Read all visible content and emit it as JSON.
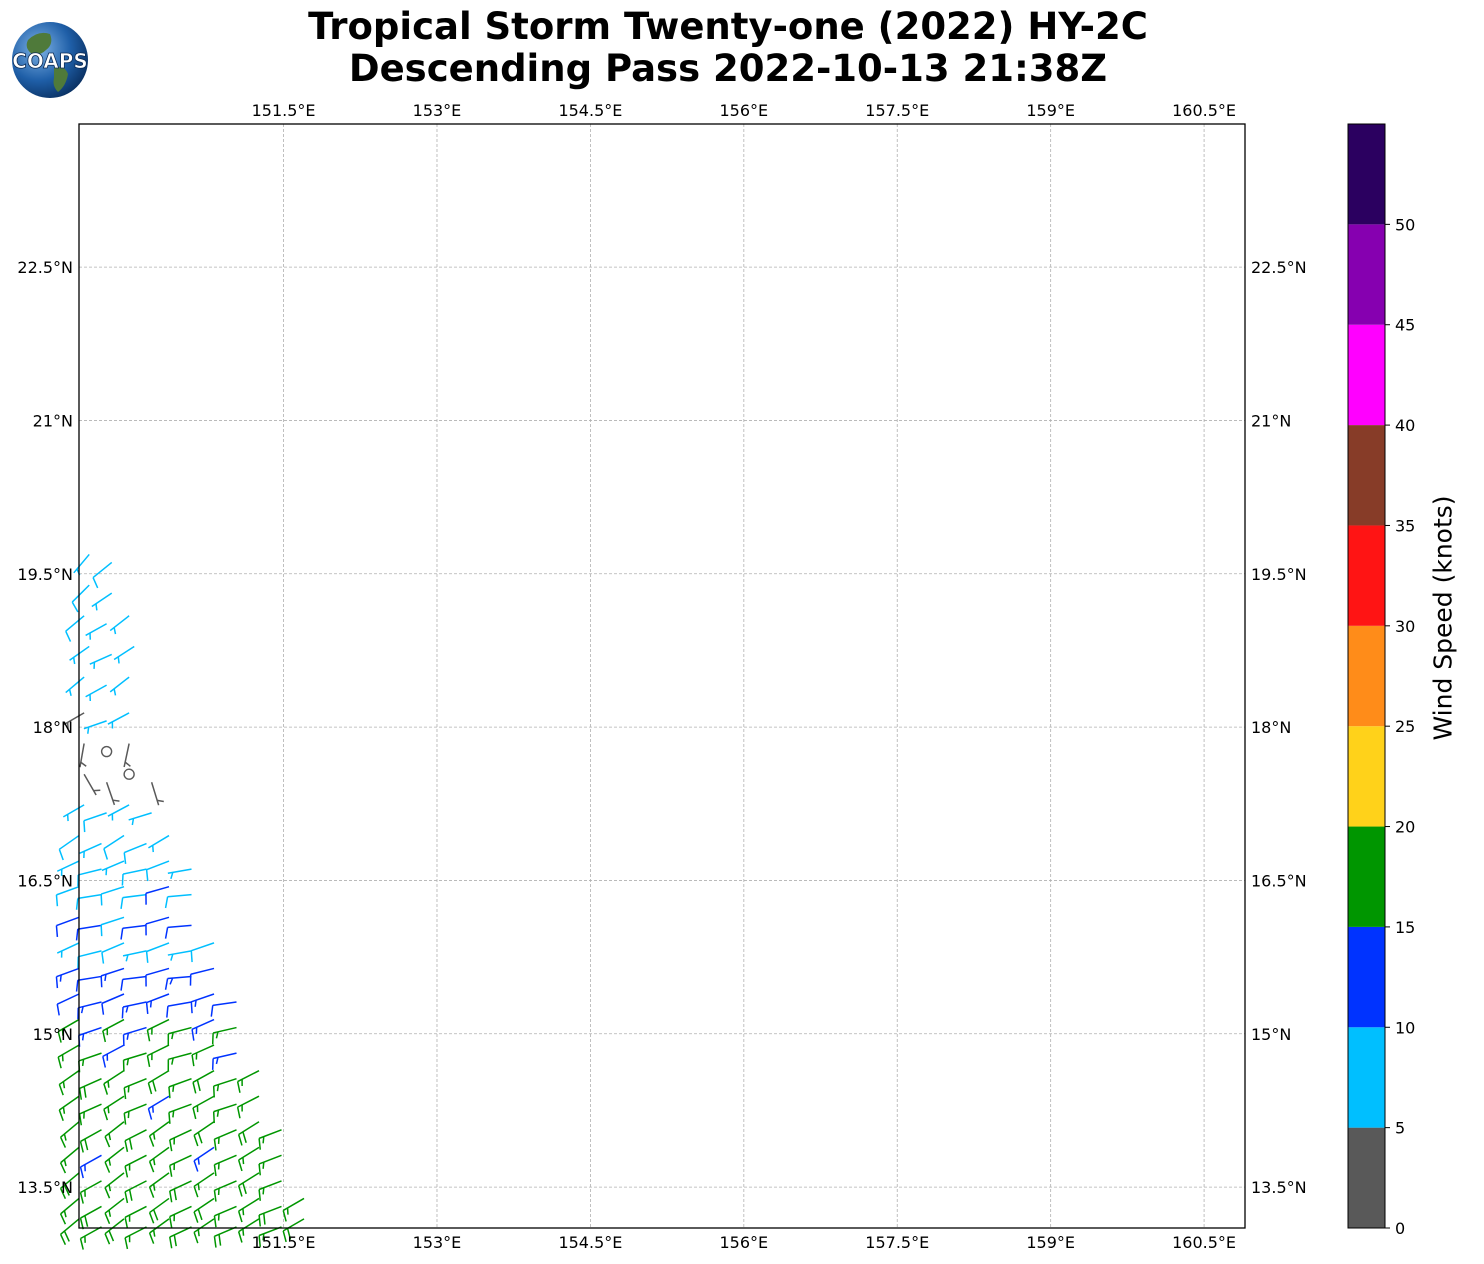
{
  "title": {
    "line1": "Tropical Storm Twenty-one (2022) HY-2C",
    "line2": "Descending Pass 2022-10-13 21:38Z"
  },
  "logo": {
    "text": "COAPS",
    "icon": "globe-logo-icon"
  },
  "map": {
    "lon_range": [
      149.5,
      160.9
    ],
    "lat_range": [
      13.1,
      23.9
    ],
    "lon_ticks": [
      "151.5°E",
      "153°E",
      "154.5°E",
      "156°E",
      "157.5°E",
      "159°E",
      "160.5°E"
    ],
    "lon_values": [
      151.5,
      153,
      154.5,
      156,
      157.5,
      159,
      160.5
    ],
    "lat_ticks": [
      "13.5°N",
      "15°N",
      "16.5°N",
      "18°N",
      "19.5°N",
      "21°N",
      "22.5°N"
    ],
    "lat_values": [
      13.5,
      15,
      16.5,
      18,
      19.5,
      21,
      22.5
    ],
    "gridlines": true
  },
  "colorbar": {
    "label": "Wind Speed (knots)",
    "ticks": [
      "0",
      "5",
      "10",
      "15",
      "20",
      "25",
      "30",
      "35",
      "40",
      "45",
      "50"
    ],
    "bounds": [
      0,
      5,
      10,
      15,
      20,
      25,
      30,
      35,
      40,
      45,
      50,
      55
    ],
    "colors": [
      "#595959",
      "#00bfff",
      "#0033ff",
      "#009600",
      "#ffd21a",
      "#ff8c19",
      "#ff1414",
      "#873c28",
      "#ff00ff",
      "#8600b0",
      "#2b0060"
    ]
  },
  "wind_barbs": {
    "rows": [
      {
        "lat": 19.65,
        "lon_start": 149.6,
        "lon_end": 149.85,
        "speed": 8,
        "dir": 230
      },
      {
        "lat": 19.35,
        "lon_start": 149.6,
        "lon_end": 150.0,
        "speed": 8,
        "dir": 235
      },
      {
        "lat": 19.05,
        "lon_start": 149.55,
        "lon_end": 150.05,
        "speed": 7,
        "dir": 240
      },
      {
        "lat": 18.75,
        "lon_start": 149.6,
        "lon_end": 150.05,
        "speed": 6,
        "dir": 245
      },
      {
        "lat": 18.45,
        "lon_start": 149.55,
        "lon_end": 150.1,
        "speed": 6,
        "dir": 240
      },
      {
        "lat": 18.1,
        "lon_start": 149.55,
        "lon_end": 150.2,
        "speed": 6,
        "dir": 250
      },
      {
        "lat": 17.8,
        "lon_start": 149.55,
        "lon_end": 150.2,
        "speed": 3,
        "dir": 200
      },
      {
        "lat": 17.5,
        "lon_start": 149.55,
        "lon_end": 150.3,
        "speed": 3,
        "dir": 160
      },
      {
        "lat": 17.2,
        "lon_start": 149.55,
        "lon_end": 150.4,
        "speed": 7,
        "dir": 250
      },
      {
        "lat": 16.9,
        "lon_start": 149.5,
        "lon_end": 150.5,
        "speed": 8,
        "dir": 245
      },
      {
        "lat": 16.65,
        "lon_start": 149.5,
        "lon_end": 150.6,
        "speed": 8,
        "dir": 255
      },
      {
        "lat": 16.4,
        "lon_start": 149.5,
        "lon_end": 150.75,
        "speed": 9,
        "dir": 260
      },
      {
        "lat": 16.1,
        "lon_start": 149.5,
        "lon_end": 150.8,
        "speed": 11,
        "dir": 260
      },
      {
        "lat": 15.85,
        "lon_start": 149.5,
        "lon_end": 150.9,
        "speed": 8,
        "dir": 255
      },
      {
        "lat": 15.6,
        "lon_start": 149.5,
        "lon_end": 150.95,
        "speed": 12,
        "dir": 260
      },
      {
        "lat": 15.35,
        "lon_start": 149.5,
        "lon_end": 151.05,
        "speed": 13,
        "dir": 255
      },
      {
        "lat": 15.1,
        "lon_start": 149.5,
        "lon_end": 151.1,
        "speed": 15,
        "dir": 250
      },
      {
        "lat": 14.85,
        "lon_start": 149.5,
        "lon_end": 151.2,
        "speed": 16,
        "dir": 250
      },
      {
        "lat": 14.6,
        "lon_start": 149.5,
        "lon_end": 151.3,
        "speed": 17,
        "dir": 245
      },
      {
        "lat": 14.35,
        "lon_start": 149.5,
        "lon_end": 151.4,
        "speed": 16,
        "dir": 245
      },
      {
        "lat": 14.1,
        "lon_start": 149.5,
        "lon_end": 151.5,
        "speed": 17,
        "dir": 240
      },
      {
        "lat": 13.85,
        "lon_start": 149.5,
        "lon_end": 151.55,
        "speed": 16,
        "dir": 240
      },
      {
        "lat": 13.6,
        "lon_start": 149.5,
        "lon_end": 151.65,
        "speed": 17,
        "dir": 240
      },
      {
        "lat": 13.35,
        "lon_start": 149.5,
        "lon_end": 151.75,
        "speed": 17,
        "dir": 240
      },
      {
        "lat": 13.15,
        "lon_start": 149.5,
        "lon_end": 151.85,
        "speed": 17,
        "dir": 240
      }
    ]
  }
}
